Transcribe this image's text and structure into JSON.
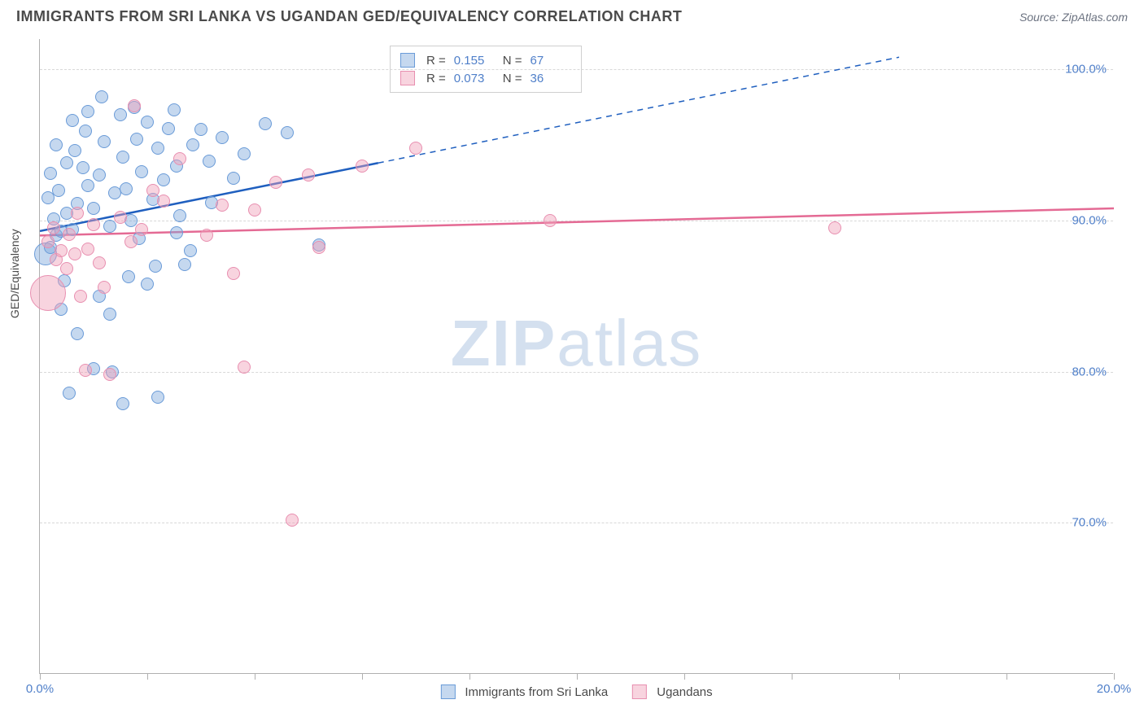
{
  "header": {
    "title": "IMMIGRANTS FROM SRI LANKA VS UGANDAN GED/EQUIVALENCY CORRELATION CHART",
    "source": "Source: ZipAtlas.com"
  },
  "chart": {
    "type": "scatter",
    "ylabel": "GED/Equivalency",
    "xlim": [
      0,
      20
    ],
    "ylim": [
      60,
      102
    ],
    "x_ticks": [
      0,
      2,
      4,
      6,
      8,
      10,
      12,
      14,
      16,
      18,
      20
    ],
    "x_tick_labels": {
      "0": "0.0%",
      "20": "20.0%"
    },
    "y_grid": [
      70,
      80,
      90,
      100
    ],
    "y_tick_labels": {
      "70": "70.0%",
      "80": "80.0%",
      "90": "90.0%",
      "100": "100.0%"
    },
    "background_color": "#ffffff",
    "grid_color": "#d8d8d8",
    "axis_color": "#b0b0b0",
    "tick_label_color": "#4f7fc9",
    "tick_fontsize": 15,
    "label_fontsize": 14,
    "watermark": {
      "text_bold": "ZIP",
      "text_light": "atlas",
      "color": "#d4e0ef",
      "fontsize": 80
    },
    "series": [
      {
        "name": "Immigrants from Sri Lanka",
        "fill": "rgba(127,168,220,0.45)",
        "stroke": "#6a9bd8",
        "trend_color": "#1f5fbf",
        "trend_width": 2.5,
        "R": "0.155",
        "N": "67",
        "marker_r": 8,
        "trend": {
          "x1": 0,
          "y1": 89.3,
          "x2": 6.3,
          "y2": 93.8,
          "dash_x2": 16,
          "dash_y2": 100.8
        },
        "points": [
          {
            "x": 0.1,
            "y": 87.8,
            "r": 14
          },
          {
            "x": 0.3,
            "y": 89.0
          },
          {
            "x": 0.2,
            "y": 88.2
          },
          {
            "x": 0.4,
            "y": 89.3
          },
          {
            "x": 0.35,
            "y": 92.0
          },
          {
            "x": 0.25,
            "y": 90.1
          },
          {
            "x": 0.5,
            "y": 90.5
          },
          {
            "x": 0.6,
            "y": 89.4
          },
          {
            "x": 0.45,
            "y": 86.0
          },
          {
            "x": 0.7,
            "y": 91.1
          },
          {
            "x": 0.8,
            "y": 93.5
          },
          {
            "x": 0.65,
            "y": 94.6
          },
          {
            "x": 0.9,
            "y": 92.3
          },
          {
            "x": 1.0,
            "y": 90.8
          },
          {
            "x": 1.1,
            "y": 93.0
          },
          {
            "x": 1.15,
            "y": 98.2
          },
          {
            "x": 1.2,
            "y": 95.2
          },
          {
            "x": 1.3,
            "y": 89.6
          },
          {
            "x": 1.4,
            "y": 91.8
          },
          {
            "x": 0.85,
            "y": 95.9
          },
          {
            "x": 1.5,
            "y": 97.0
          },
          {
            "x": 1.55,
            "y": 94.2
          },
          {
            "x": 1.6,
            "y": 92.1
          },
          {
            "x": 1.7,
            "y": 90.0
          },
          {
            "x": 1.75,
            "y": 97.5
          },
          {
            "x": 1.8,
            "y": 95.4
          },
          {
            "x": 1.9,
            "y": 93.2
          },
          {
            "x": 2.0,
            "y": 96.5
          },
          {
            "x": 2.1,
            "y": 91.4
          },
          {
            "x": 2.15,
            "y": 87.0
          },
          {
            "x": 2.2,
            "y": 94.8
          },
          {
            "x": 2.3,
            "y": 92.7
          },
          {
            "x": 2.4,
            "y": 96.1
          },
          {
            "x": 2.5,
            "y": 97.3
          },
          {
            "x": 2.55,
            "y": 93.6
          },
          {
            "x": 2.6,
            "y": 90.3
          },
          {
            "x": 2.8,
            "y": 88.0
          },
          {
            "x": 2.85,
            "y": 95.0
          },
          {
            "x": 3.0,
            "y": 96.0
          },
          {
            "x": 3.15,
            "y": 93.9
          },
          {
            "x": 3.2,
            "y": 91.2
          },
          {
            "x": 3.4,
            "y": 95.5
          },
          {
            "x": 3.6,
            "y": 92.8
          },
          {
            "x": 3.8,
            "y": 94.4
          },
          {
            "x": 4.2,
            "y": 96.4
          },
          {
            "x": 4.6,
            "y": 95.8
          },
          {
            "x": 5.2,
            "y": 88.4
          },
          {
            "x": 0.5,
            "y": 93.8
          },
          {
            "x": 0.9,
            "y": 97.2
          },
          {
            "x": 1.1,
            "y": 85.0
          },
          {
            "x": 1.3,
            "y": 83.8
          },
          {
            "x": 1.0,
            "y": 80.2
          },
          {
            "x": 1.35,
            "y": 80.0
          },
          {
            "x": 1.55,
            "y": 77.9
          },
          {
            "x": 2.2,
            "y": 78.3
          },
          {
            "x": 1.65,
            "y": 86.3
          },
          {
            "x": 0.55,
            "y": 78.6
          },
          {
            "x": 0.7,
            "y": 82.5
          },
          {
            "x": 0.4,
            "y": 84.1
          },
          {
            "x": 2.0,
            "y": 85.8
          },
          {
            "x": 2.55,
            "y": 89.2
          },
          {
            "x": 0.15,
            "y": 91.5
          },
          {
            "x": 0.2,
            "y": 93.1
          },
          {
            "x": 0.3,
            "y": 95.0
          },
          {
            "x": 0.6,
            "y": 96.6
          },
          {
            "x": 1.85,
            "y": 88.8
          },
          {
            "x": 2.7,
            "y": 87.1
          }
        ]
      },
      {
        "name": "Ugandans",
        "fill": "rgba(240,160,185,0.45)",
        "stroke": "#e88fb0",
        "trend_color": "#e46a94",
        "trend_width": 2.5,
        "R": "0.073",
        "N": "36",
        "marker_r": 8,
        "trend": {
          "x1": 0,
          "y1": 89.0,
          "x2": 20,
          "y2": 90.8
        },
        "points": [
          {
            "x": 0.15,
            "y": 88.6
          },
          {
            "x": 0.15,
            "y": 85.2,
            "r": 22
          },
          {
            "x": 0.3,
            "y": 87.4
          },
          {
            "x": 0.25,
            "y": 89.5
          },
          {
            "x": 0.4,
            "y": 88.0
          },
          {
            "x": 0.5,
            "y": 86.8
          },
          {
            "x": 0.55,
            "y": 89.1
          },
          {
            "x": 0.65,
            "y": 87.8
          },
          {
            "x": 0.7,
            "y": 90.5
          },
          {
            "x": 0.75,
            "y": 85.0
          },
          {
            "x": 0.9,
            "y": 88.1
          },
          {
            "x": 1.0,
            "y": 89.7
          },
          {
            "x": 1.1,
            "y": 87.2
          },
          {
            "x": 1.2,
            "y": 85.6
          },
          {
            "x": 0.85,
            "y": 80.1
          },
          {
            "x": 1.3,
            "y": 79.8
          },
          {
            "x": 1.5,
            "y": 90.2
          },
          {
            "x": 1.7,
            "y": 88.6
          },
          {
            "x": 1.75,
            "y": 97.6
          },
          {
            "x": 1.9,
            "y": 89.4
          },
          {
            "x": 2.1,
            "y": 92.0
          },
          {
            "x": 2.3,
            "y": 91.3
          },
          {
            "x": 2.6,
            "y": 94.1
          },
          {
            "x": 3.1,
            "y": 89.0
          },
          {
            "x": 3.4,
            "y": 91.0
          },
          {
            "x": 3.6,
            "y": 86.5
          },
          {
            "x": 3.8,
            "y": 80.3
          },
          {
            "x": 4.0,
            "y": 90.7
          },
          {
            "x": 4.4,
            "y": 92.5
          },
          {
            "x": 4.7,
            "y": 70.2
          },
          {
            "x": 5.0,
            "y": 93.0
          },
          {
            "x": 5.2,
            "y": 88.2
          },
          {
            "x": 6.0,
            "y": 93.6
          },
          {
            "x": 7.0,
            "y": 94.8
          },
          {
            "x": 9.5,
            "y": 90.0
          },
          {
            "x": 14.8,
            "y": 89.5
          }
        ]
      }
    ],
    "bottom_legend": [
      {
        "label": "Immigrants from Sri Lanka",
        "fill": "rgba(127,168,220,0.45)",
        "stroke": "#6a9bd8"
      },
      {
        "label": "Ugandans",
        "fill": "rgba(240,160,185,0.45)",
        "stroke": "#e88fb0"
      }
    ]
  }
}
